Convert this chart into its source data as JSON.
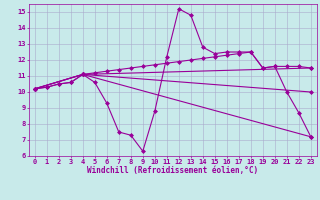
{
  "background_color": "#c8eaea",
  "line_color": "#990099",
  "grid_color": "#aaaacc",
  "xlabel": "Windchill (Refroidissement éolien,°C)",
  "xlabel_color": "#990099",
  "tick_color": "#990099",
  "xlim": [
    -0.5,
    23.5
  ],
  "ylim": [
    6,
    15.5
  ],
  "xticks": [
    0,
    1,
    2,
    3,
    4,
    5,
    6,
    7,
    8,
    9,
    10,
    11,
    12,
    13,
    14,
    15,
    16,
    17,
    18,
    19,
    20,
    21,
    22,
    23
  ],
  "yticks": [
    6,
    7,
    8,
    9,
    10,
    11,
    12,
    13,
    14,
    15
  ],
  "lines": [
    {
      "x": [
        0,
        1,
        2,
        3,
        4,
        5,
        6,
        7,
        8,
        9,
        10,
        11,
        12,
        13,
        14,
        15,
        16,
        17,
        18,
        19,
        20,
        21,
        22,
        23
      ],
      "y": [
        10.2,
        10.3,
        10.5,
        10.6,
        11.1,
        10.6,
        9.3,
        7.5,
        7.3,
        6.3,
        8.8,
        12.2,
        15.2,
        14.8,
        12.8,
        12.4,
        12.5,
        12.5,
        12.5,
        11.5,
        11.6,
        10.0,
        8.7,
        7.2
      ]
    },
    {
      "x": [
        0,
        1,
        2,
        3,
        4,
        5,
        6,
        7,
        8,
        9,
        10,
        11,
        12,
        13,
        14,
        15,
        16,
        17,
        18,
        19,
        20,
        21,
        22,
        23
      ],
      "y": [
        10.2,
        10.3,
        10.5,
        10.6,
        11.1,
        11.2,
        11.3,
        11.4,
        11.5,
        11.6,
        11.7,
        11.8,
        11.9,
        12.0,
        12.1,
        12.2,
        12.3,
        12.4,
        12.5,
        11.5,
        11.6,
        11.6,
        11.6,
        11.5
      ]
    },
    {
      "x": [
        0,
        4,
        23
      ],
      "y": [
        10.2,
        11.1,
        7.2
      ]
    },
    {
      "x": [
        0,
        4,
        23
      ],
      "y": [
        10.2,
        11.1,
        10.0
      ]
    },
    {
      "x": [
        0,
        4,
        23
      ],
      "y": [
        10.2,
        11.1,
        11.5
      ]
    }
  ],
  "marker": "D",
  "markersize": 2.0,
  "linewidth": 0.8,
  "tick_fontsize": 5.0,
  "xlabel_fontsize": 5.5
}
